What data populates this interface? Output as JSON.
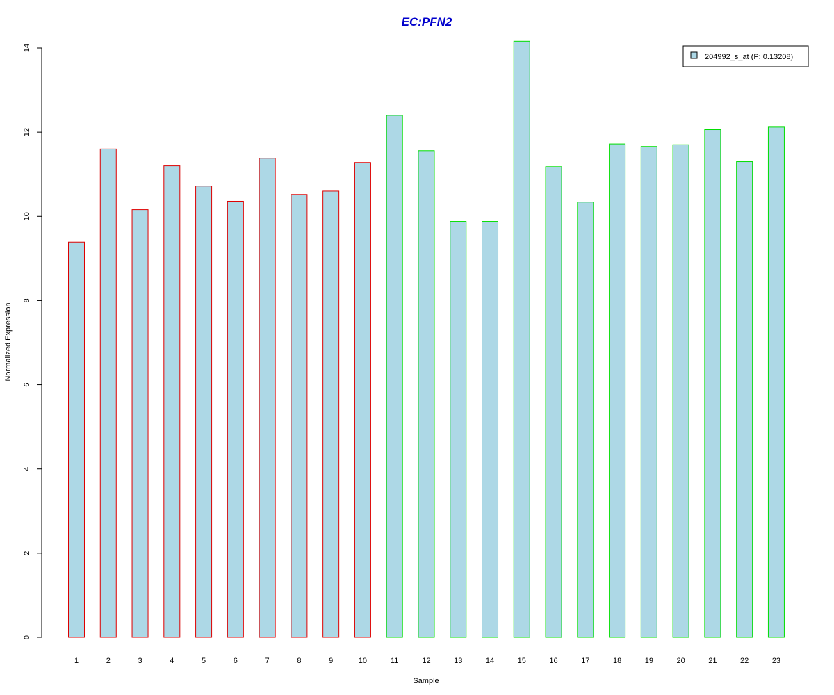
{
  "chart_data": {
    "type": "bar",
    "title": "EC:PFN2",
    "xlabel": "Sample",
    "ylabel": "Normalized Expression",
    "ylim": [
      0,
      14
    ],
    "yticks": [
      0,
      2,
      4,
      6,
      8,
      10,
      12,
      14
    ],
    "categories": [
      "1",
      "2",
      "3",
      "4",
      "5",
      "6",
      "7",
      "8",
      "9",
      "10",
      "11",
      "12",
      "13",
      "14",
      "15",
      "16",
      "17",
      "18",
      "19",
      "20",
      "21",
      "22",
      "23"
    ],
    "series": [
      {
        "name": "204992_s_at (P: 0.13208)",
        "values": [
          9.39,
          11.6,
          10.16,
          11.2,
          10.72,
          10.36,
          11.38,
          10.52,
          10.6,
          11.28,
          12.4,
          11.56,
          9.88,
          9.88,
          14.16,
          11.18,
          10.34,
          11.72,
          11.66,
          11.7,
          12.06,
          11.3,
          12.12
        ]
      }
    ],
    "groups": [
      {
        "range": [
          1,
          10
        ],
        "border_color": "#dd0000"
      },
      {
        "range": [
          11,
          23
        ],
        "border_color": "#00dd00"
      }
    ],
    "fill_color": "#add8e6",
    "title_color": "#0000cc",
    "legend_position": "top-right",
    "grid": false
  }
}
